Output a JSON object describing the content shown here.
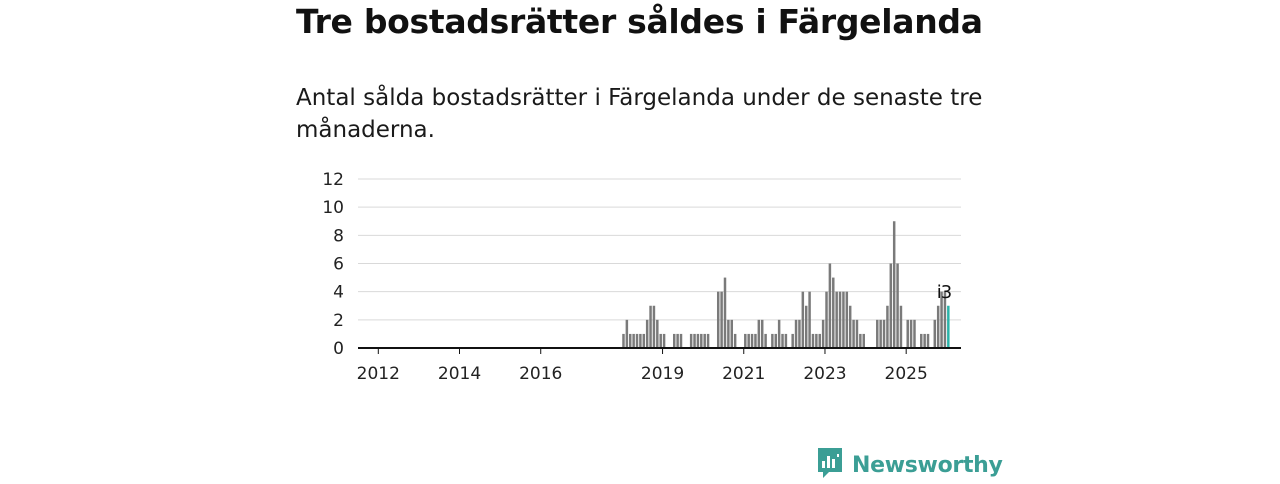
{
  "header": {
    "title": "Tre bostadsrätter såldes i Färgelanda",
    "subtitle": "Antal sålda bostadsrätter i Färgelanda under de senaste tre månaderna."
  },
  "brand": {
    "name": "Newsworthy",
    "icon": "newsworthy-logo-icon",
    "color": "#3b9e95"
  },
  "colors": {
    "bar": "#7a7a7a",
    "highlight": "#2bb3a9",
    "grid": "#d9d9d9",
    "axis": "#111111"
  },
  "chart_data": {
    "type": "bar",
    "title": "",
    "xlabel": "",
    "ylabel": "",
    "ylim": [
      0,
      12
    ],
    "yticks": [
      "0",
      "2",
      "4",
      "6",
      "8",
      "10",
      "12"
    ],
    "xticks": [
      "2012",
      "2014",
      "2016",
      "2019",
      "2021",
      "2023",
      "2025"
    ],
    "xlim_years": [
      2011.5,
      2026.35
    ],
    "grid": true,
    "start_year": 2018.0,
    "series": [
      {
        "values": [
          1,
          2,
          1,
          1,
          1,
          1,
          1,
          2,
          3,
          3,
          2,
          1,
          1,
          0,
          0,
          1,
          1,
          1,
          0,
          0,
          1,
          1,
          1,
          1,
          1,
          1,
          0,
          0,
          4,
          4,
          5,
          2,
          2,
          1,
          0,
          0,
          1,
          1,
          1,
          1,
          2,
          2,
          1,
          0,
          1,
          1,
          2,
          1,
          1,
          0,
          1,
          2,
          2,
          4,
          3,
          4,
          1,
          1,
          1,
          2,
          4,
          6,
          5,
          4,
          4,
          4,
          4,
          3,
          2,
          2,
          1,
          1,
          0,
          0,
          0,
          2,
          2,
          2,
          3,
          6,
          9,
          6,
          3,
          0,
          2,
          2,
          2,
          0,
          1,
          1,
          1,
          0,
          2,
          3,
          4,
          4,
          3
        ]
      }
    ],
    "highlight": {
      "index": 96,
      "value": 3,
      "label": "3",
      "marker": "i"
    }
  }
}
